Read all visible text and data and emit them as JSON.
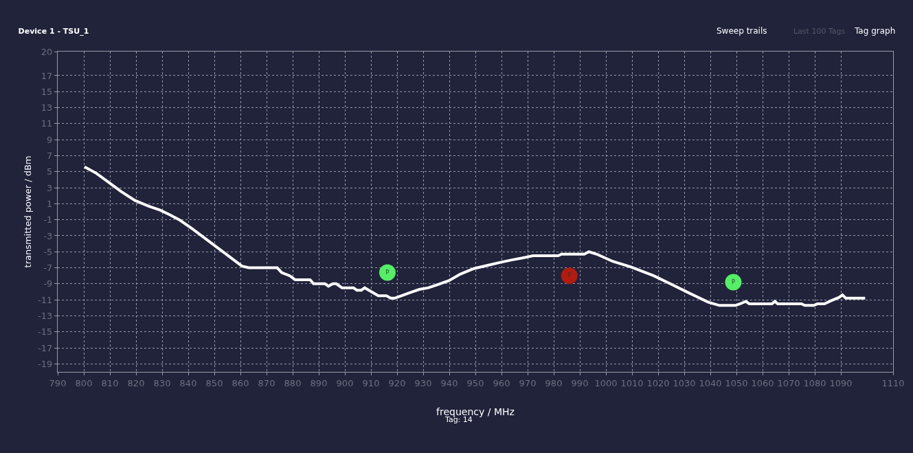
{
  "chart_data": {
    "type": "line",
    "title": "Device 1 - TSU_1",
    "xlabel": "frequency / MHz",
    "ylabel": "transmitted power / dBm",
    "annotations": [
      "Sweep trails",
      "Last 100 Tags",
      "Tag graph",
      "Tag: 14"
    ],
    "xlim": [
      790,
      1110
    ],
    "xticks": [
      790,
      800,
      810,
      820,
      830,
      840,
      850,
      860,
      870,
      880,
      890,
      900,
      910,
      920,
      930,
      940,
      950,
      960,
      970,
      980,
      990,
      1000,
      1010,
      1020,
      1030,
      1040,
      1050,
      1060,
      1070,
      1080,
      1090,
      1110
    ],
    "ylim": [
      -20,
      20
    ],
    "yticks": [
      20,
      17,
      15,
      13,
      11,
      9,
      7,
      5,
      3,
      1,
      -1,
      -3,
      -5,
      -7,
      -9,
      -11,
      -13,
      -15,
      -17,
      -19
    ],
    "grid": true,
    "line_style": "solid",
    "series": [
      {
        "color": "#ffffff",
        "marker": "none",
        "x": [
          800.3,
          804.8,
          814.4,
          819.6,
          824.8,
          829.2,
          833.1,
          837,
          841.4,
          860.6,
          863.2,
          874.1,
          875.8,
          878.9,
          881,
          886.7,
          888,
          892.4,
          893.7,
          895.4,
          896.7,
          898.9,
          903.3,
          904.6,
          906.3,
          907.6,
          912.8,
          915.9,
          917.6,
          919,
          921.6,
          925,
          928.5,
          932,
          935.5,
          939.9,
          944.2,
          949.4,
          954.7,
          959.9,
          964.3,
          967.7,
          972.1,
          981.7,
          983,
          991.7,
          993.5,
          996.5,
          1002.6,
          1009.6,
          1018.3,
          1025.3,
          1032.2,
          1039.2,
          1043.5,
          1049.7,
          1051.4,
          1053.6,
          1054.9,
          1063.6,
          1064.7,
          1065.8,
          1074.9,
          1076.2,
          1079.7,
          1081,
          1083.7,
          1086.3,
          1089.3,
          1090.6,
          1091.9,
          1099.3
        ],
        "values": [
          5.6,
          4.8,
          2.5,
          1.4,
          0.7,
          0.2,
          -0.4,
          -1.1,
          -2.1,
          -6.8,
          -7,
          -7,
          -7.6,
          -8,
          -8.5,
          -8.5,
          -9,
          -9,
          -9.3,
          -9,
          -9,
          -9.5,
          -9.5,
          -9.8,
          -9.8,
          -9.5,
          -10.5,
          -10.5,
          -10.8,
          -10.8,
          -10.5,
          -10.1,
          -9.7,
          -9.5,
          -9.1,
          -8.6,
          -7.8,
          -7.1,
          -6.7,
          -6.3,
          -6,
          -5.8,
          -5.5,
          -5.5,
          -5.3,
          -5.3,
          -5,
          -5.3,
          -6.2,
          -6.9,
          -8,
          -9.1,
          -10.2,
          -11.3,
          -11.7,
          -11.7,
          -11.5,
          -11.2,
          -11.5,
          -11.5,
          -11.2,
          -11.5,
          -11.5,
          -11.7,
          -11.7,
          -11.5,
          -11.5,
          -11.1,
          -10.7,
          -10.4,
          -10.8,
          -10.8
        ]
      },
      {
        "type": "scatter",
        "marker": "circle",
        "x": [
          916.3,
          986,
          1048.8
        ],
        "values": [
          -7.6,
          -8,
          -8.8
        ],
        "colors": [
          "#55ee66",
          "#b01c10",
          "#55ee66"
        ],
        "value_labels": [
          "P",
          "P",
          "P"
        ]
      }
    ]
  }
}
